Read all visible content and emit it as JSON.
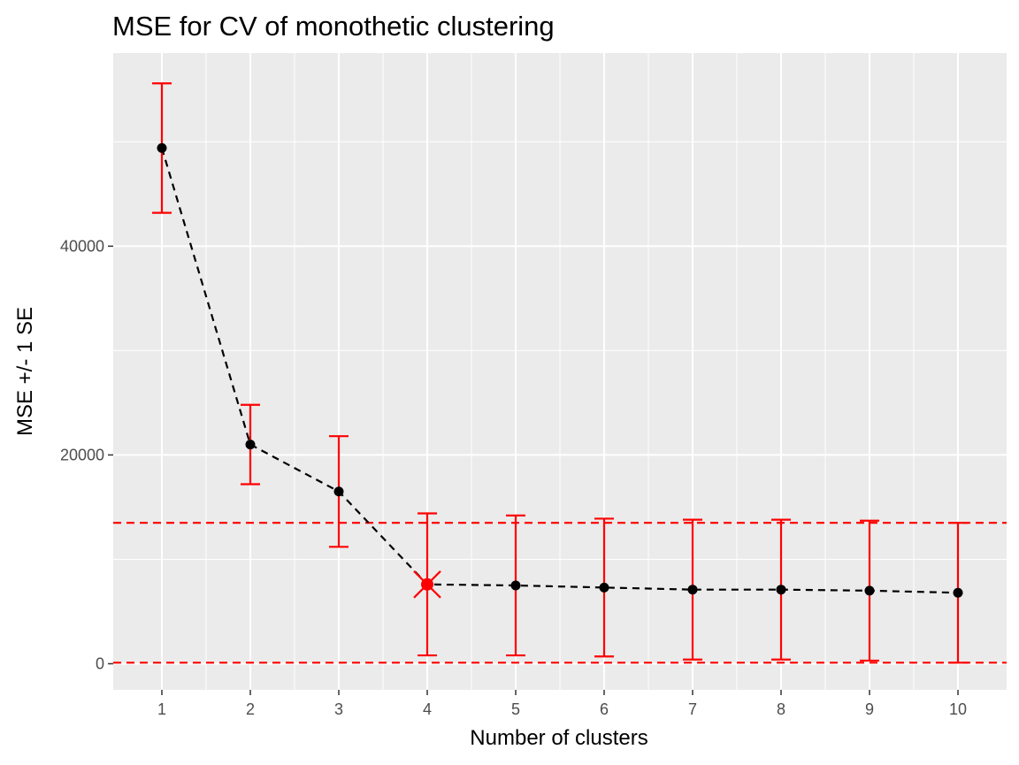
{
  "chart_data": {
    "type": "line",
    "title": "MSE for CV of monothetic clustering",
    "xlabel": "Number of clusters",
    "ylabel": "MSE +/- 1 SE",
    "x": [
      1,
      2,
      3,
      4,
      5,
      6,
      7,
      8,
      9,
      10
    ],
    "xlim": [
      0.45,
      10.55
    ],
    "ylim": [
      -2500,
      58500
    ],
    "yticks": [
      0,
      20000,
      40000
    ],
    "series": [
      {
        "mse": [
          49400,
          21000,
          16500,
          7600,
          7500,
          7300,
          7100,
          7100,
          7000,
          6800
        ],
        "se_lower": [
          43200,
          17200,
          11200,
          800,
          800,
          700,
          400,
          400,
          300,
          100
        ],
        "se_upper": [
          55600,
          24800,
          21800,
          14400,
          14200,
          13900,
          13800,
          13800,
          13700,
          13500
        ],
        "line_style": "dashed",
        "point_color": "#000000",
        "errorbar_color": "#ff0000"
      }
    ],
    "reference_lines": [
      13500,
      100
    ],
    "reference_line_color": "#ff0000",
    "highlight": {
      "x": 4,
      "y": 7600,
      "color": "#ff0000",
      "marker": "x"
    },
    "panel_background": "#ebebeb",
    "grid": true
  }
}
